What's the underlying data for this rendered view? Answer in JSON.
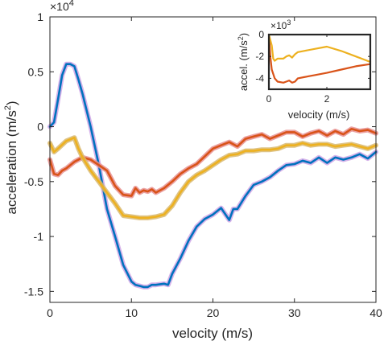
{
  "chart_data": [
    {
      "type": "line",
      "title": "",
      "xlabel": "velocity (m/s)",
      "ylabel_main": "acceleration (m/s",
      "ylabel_sup": "2",
      "ylabel_close": ")",
      "multiplier_base": "×10",
      "multiplier_exp": "4",
      "xlim": [
        0,
        40
      ],
      "ylim": [
        -16000,
        10000
      ],
      "xticks": [
        0,
        10,
        20,
        30,
        40
      ],
      "xtick_labels": [
        "0",
        "10",
        "20",
        "30",
        "40"
      ],
      "yticks": [
        10000,
        5000,
        0,
        -5000,
        -10000,
        -15000
      ],
      "ytick_labels": [
        "1",
        "0.5",
        "0",
        "-0.5",
        "-1",
        "-1.5"
      ],
      "grid": false,
      "legend": "none",
      "series": [
        {
          "color": "#0072BD",
          "band_color": "#cfa6e6",
          "x": [
            0,
            0.5,
            1,
            1.5,
            2,
            2.5,
            3,
            3.5,
            4,
            5,
            6,
            7,
            8,
            9,
            10,
            10.5,
            11,
            11.5,
            12,
            12.5,
            13,
            14,
            14.5,
            15,
            16,
            17,
            18,
            19,
            20,
            21,
            22,
            22.5,
            23,
            24,
            25,
            26,
            27,
            28,
            29,
            30,
            31,
            32,
            33,
            34,
            35,
            36,
            37,
            38,
            39,
            40
          ],
          "y": [
            0,
            400,
            2500,
            4700,
            5700,
            5700,
            5500,
            4300,
            3000,
            0,
            -3500,
            -7500,
            -10000,
            -12600,
            -14100,
            -14400,
            -14500,
            -14600,
            -14600,
            -14400,
            -14400,
            -14300,
            -14400,
            -13400,
            -12000,
            -10400,
            -9100,
            -8400,
            -8000,
            -7400,
            -8500,
            -7500,
            -7500,
            -6300,
            -5300,
            -5000,
            -4600,
            -4000,
            -3500,
            -3400,
            -3100,
            -3300,
            -2800,
            -3300,
            -2800,
            -3000,
            -2800,
            -2500,
            -2900,
            -2300
          ]
        },
        {
          "color": "#D95319",
          "band_color": "#e89090",
          "x": [
            0,
            0.5,
            1,
            1.5,
            2,
            3,
            4,
            5,
            6,
            7,
            8,
            9,
            10,
            10.5,
            11,
            11.5,
            12,
            12.5,
            13,
            14,
            15,
            16,
            17,
            18,
            19,
            20,
            21,
            22,
            23,
            24,
            25,
            26,
            27,
            28,
            29,
            30,
            31,
            32,
            33,
            34,
            35,
            36,
            37,
            38,
            39,
            40
          ],
          "y": [
            -3000,
            -4300,
            -4400,
            -4000,
            -3800,
            -3200,
            -2800,
            -3000,
            -3500,
            -4000,
            -5400,
            -6200,
            -6300,
            -5600,
            -6000,
            -5800,
            -5900,
            -5700,
            -6000,
            -5600,
            -5000,
            -4300,
            -3800,
            -3400,
            -2700,
            -2000,
            -1700,
            -1400,
            -1800,
            -1100,
            -900,
            -700,
            -1100,
            -800,
            -500,
            -500,
            -900,
            -600,
            -400,
            -800,
            -400,
            -700,
            -200,
            -400,
            -300,
            -600
          ]
        },
        {
          "color": "#EDB120",
          "band_color": "#d8b870",
          "x": [
            0,
            0.5,
            1,
            2,
            3,
            3.5,
            4,
            5,
            6,
            7,
            8,
            9,
            10,
            11,
            12,
            13,
            14,
            15,
            16,
            17,
            18,
            19,
            20,
            21,
            22,
            23,
            24,
            25,
            26,
            27,
            28,
            29,
            30,
            31,
            32,
            33,
            34,
            35,
            36,
            37,
            38,
            39,
            40
          ],
          "y": [
            -1500,
            -2300,
            -2000,
            -1300,
            -1000,
            -2000,
            -2800,
            -4000,
            -5000,
            -6000,
            -7000,
            -8100,
            -8200,
            -8300,
            -8300,
            -8200,
            -8000,
            -7200,
            -6000,
            -5000,
            -4400,
            -4000,
            -3500,
            -3000,
            -2600,
            -2500,
            -2200,
            -2200,
            -2100,
            -2100,
            -2000,
            -1700,
            -1700,
            -1500,
            -1700,
            -1600,
            -1600,
            -1800,
            -1700,
            -1600,
            -1800,
            -2000,
            -1700
          ]
        }
      ]
    },
    {
      "type": "line",
      "title": "",
      "xlabel": "velocity (m/s)",
      "ylabel_main": "accel. (m/s",
      "ylabel_sup": "2",
      "ylabel_close": ")",
      "multiplier_base": "×10",
      "multiplier_exp": "3",
      "xlim": [
        0,
        3.5
      ],
      "ylim": [
        -5000,
        0
      ],
      "xticks": [
        0,
        2
      ],
      "xtick_labels": [
        "0",
        "2"
      ],
      "yticks": [
        0,
        -2000,
        -4000
      ],
      "ytick_labels": [
        "0",
        "-2",
        "-4"
      ],
      "grid": false,
      "legend": "none",
      "series": [
        {
          "color": "#D95319",
          "x": [
            0,
            0.05,
            0.1,
            0.2,
            0.3,
            0.5,
            0.6,
            0.7,
            0.8,
            0.9,
            1.0,
            1.2,
            1.6,
            2.0,
            2.5,
            3.0,
            3.5
          ],
          "y": [
            0,
            -2000,
            -3200,
            -4000,
            -4300,
            -4400,
            -4300,
            -4200,
            -4400,
            -4300,
            -4000,
            -3900,
            -3700,
            -3500,
            -3200,
            -2900,
            -2700
          ]
        },
        {
          "color": "#EDB120",
          "x": [
            0,
            0.1,
            0.15,
            0.2,
            0.3,
            0.5,
            0.6,
            0.7,
            0.8,
            0.9,
            1.0,
            1.2,
            1.6,
            2.0,
            2.5,
            3.0,
            3.5
          ],
          "y": [
            0,
            -1000,
            -2200,
            -2400,
            -2200,
            -2200,
            -2000,
            -1900,
            -2100,
            -1800,
            -1600,
            -1500,
            -1300,
            -1100,
            -1500,
            -2000,
            -2500
          ]
        }
      ]
    }
  ]
}
